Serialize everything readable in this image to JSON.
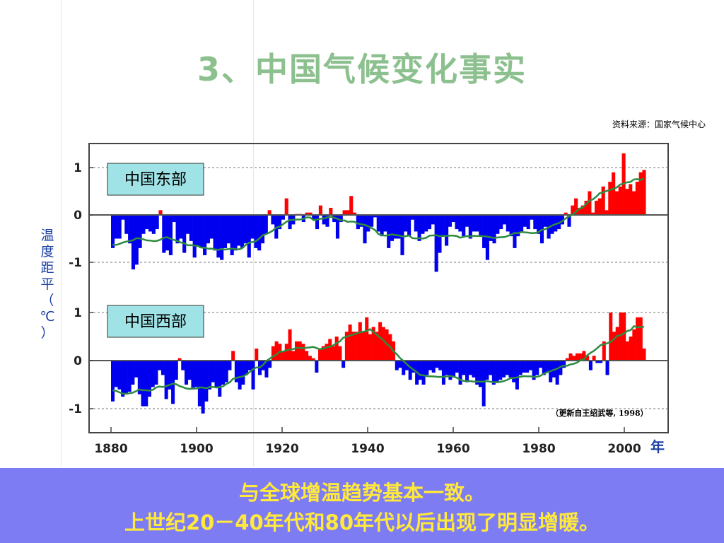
{
  "title": "3、中国气候变化事实",
  "source": "资料来源：国家气候中心",
  "ylabel_chars": [
    "温",
    "度",
    "距",
    "平",
    "（",
    "℃",
    "）"
  ],
  "footer": {
    "line1": "与全球增温趋势基本一致。",
    "line2": "上世纪20－40年代和80年代以后出现了明显增暖。"
  },
  "colors": {
    "title": "#8cc08f",
    "positive": "#ff0000",
    "negative": "#0000ee",
    "smooth": "#2e8b40",
    "banner": "#7e7cf2",
    "banner_text": "#ffe93b",
    "label_box": "#9fe3e6"
  },
  "chart_data": {
    "type": "bar",
    "x_start": 1880,
    "x_end": 2005,
    "xlabel": "年",
    "xlim": [
      1878,
      2010
    ],
    "xticks": [
      1880,
      1900,
      1920,
      1940,
      1960,
      1980,
      2000
    ],
    "yticks": [
      -1,
      0,
      1
    ],
    "citation": "（更新自王绍武等, 1998）",
    "panels": [
      {
        "name": "中国东部",
        "ylim": [
          -1.3,
          1.3
        ],
        "values": [
          -0.7,
          -0.5,
          -0.5,
          -0.1,
          -0.4,
          -0.6,
          -1.15,
          -1.05,
          -0.7,
          -0.4,
          -0.3,
          -0.35,
          -0.4,
          -0.3,
          0.1,
          -0.8,
          -0.75,
          -0.85,
          -0.15,
          -0.6,
          -0.5,
          -0.8,
          -0.4,
          -0.55,
          -0.9,
          -0.65,
          -0.7,
          -0.85,
          -0.6,
          -0.5,
          -0.75,
          -0.9,
          -0.95,
          -0.7,
          -0.6,
          -0.85,
          -0.75,
          -0.65,
          -0.7,
          -0.6,
          -0.9,
          -0.5,
          -0.7,
          -0.75,
          -0.6,
          -0.4,
          0.1,
          -0.2,
          -0.5,
          -0.3,
          -0.1,
          0.35,
          -0.3,
          -0.2,
          0.02,
          0.02,
          -0.15,
          0.05,
          0.05,
          -0.1,
          -0.3,
          0.2,
          -0.2,
          -0.25,
          0.15,
          -0.15,
          -0.5,
          -0.15,
          0.1,
          0.1,
          0.4,
          0.05,
          -0.3,
          -0.25,
          -0.6,
          -0.35,
          -0.25,
          -0.05,
          -0.35,
          -0.45,
          -0.35,
          -0.7,
          -0.55,
          -0.5,
          -0.5,
          -0.85,
          -0.35,
          -0.45,
          -0.1,
          -0.35,
          -0.55,
          -0.4,
          -0.35,
          -0.3,
          -0.2,
          -1.2,
          -0.8,
          -0.45,
          -0.65,
          -0.25,
          -0.15,
          -0.3,
          -0.35,
          -0.45,
          -0.25,
          -0.5,
          -0.35,
          -0.35,
          -0.45,
          -0.7,
          -0.95,
          -0.55,
          -0.6,
          -0.4,
          -0.3,
          -0.2,
          -0.35,
          -0.45,
          -0.7,
          -0.45,
          -0.35,
          -0.25,
          -0.3,
          -0.1,
          -0.3,
          -0.4,
          -0.6,
          -0.25,
          -0.5,
          -0.4,
          -0.35,
          -0.3,
          -0.2,
          0.05,
          -0.25,
          0.2,
          0.35,
          0.15,
          0.2,
          0.3,
          0.5,
          0.05,
          0.3,
          0.35,
          0.6,
          0.1,
          0.7,
          0.9,
          0.5,
          0.6,
          1.3,
          0.55,
          0.65,
          0.5,
          0.7,
          0.9,
          0.95
        ]
      },
      {
        "name": "中国西部",
        "ylim": [
          -1.3,
          1.3
        ],
        "values": [
          -0.85,
          -0.55,
          -0.6,
          -0.75,
          -0.7,
          -0.65,
          -0.5,
          -0.35,
          -0.7,
          -0.95,
          -0.95,
          -0.75,
          -0.55,
          -0.5,
          -0.2,
          -0.3,
          -0.8,
          -0.6,
          -0.9,
          -0.4,
          0.05,
          -0.2,
          -0.5,
          -0.4,
          -0.6,
          -0.55,
          -0.95,
          -1.1,
          -0.85,
          -0.6,
          -0.45,
          -0.55,
          -0.75,
          -0.5,
          -0.45,
          -0.2,
          0.2,
          -0.45,
          -0.6,
          -0.5,
          -0.3,
          -0.2,
          -0.6,
          0.25,
          -0.3,
          -0.2,
          -0.35,
          -0.15,
          0.3,
          0.4,
          0.35,
          0.2,
          0.35,
          0.65,
          0.2,
          0.4,
          0.4,
          0.35,
          0.2,
          0.1,
          0.05,
          -0.25,
          0.25,
          0.3,
          0.35,
          0.45,
          0.3,
          0.5,
          0.3,
          -0.15,
          0.6,
          0.75,
          0.6,
          0.6,
          0.8,
          0.6,
          0.9,
          0.55,
          0.7,
          0.6,
          0.8,
          0.7,
          0.65,
          0.55,
          0.4,
          -0.2,
          -0.15,
          -0.3,
          -0.2,
          -0.4,
          -0.25,
          -0.5,
          -0.4,
          -0.5,
          -0.3,
          -0.2,
          -0.25,
          -0.15,
          -0.2,
          -0.5,
          -0.3,
          -0.4,
          -0.35,
          -0.25,
          -0.5,
          -0.3,
          -0.45,
          -0.3,
          -0.35,
          -0.5,
          -0.55,
          -0.95,
          -0.4,
          -0.3,
          -0.5,
          -0.45,
          -0.4,
          -0.35,
          -0.3,
          -0.35,
          -0.45,
          -0.6,
          -0.3,
          -0.25,
          -0.25,
          -0.2,
          -0.4,
          -0.3,
          -0.15,
          -0.3,
          -0.25,
          -0.45,
          -0.35,
          -0.5,
          -0.3,
          -0.15,
          0.05,
          0.15,
          0.1,
          0.15,
          0.15,
          0.2,
          0.1,
          -0.2,
          0.1,
          -0.05,
          -0.05,
          0.4,
          -0.3,
          1.0,
          0.6,
          0.7,
          1.0,
          1.0,
          0.4,
          0.5,
          0.65,
          0.9,
          0.9,
          0.25
        ]
      }
    ]
  }
}
